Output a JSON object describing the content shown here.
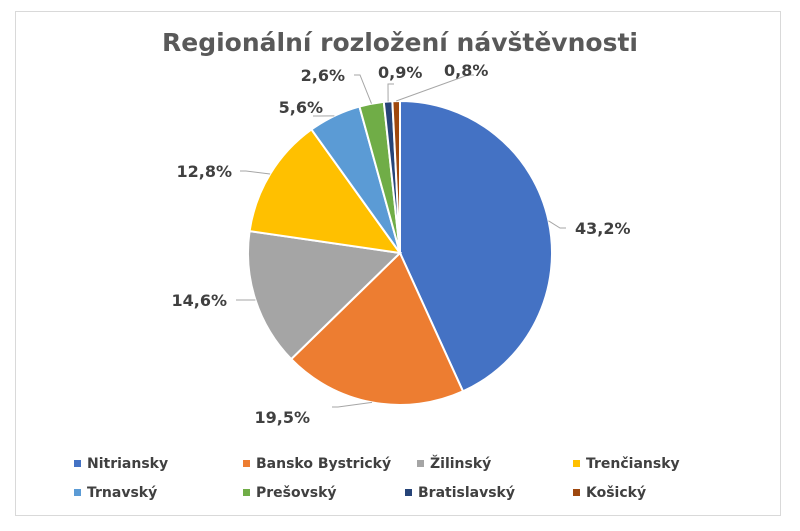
{
  "chart_data": {
    "type": "pie",
    "title": "Regionální rozložení návštěvnosti",
    "legend_position": "bottom",
    "slices": [
      {
        "name": "Nitriansky",
        "value": 43.2,
        "label": "43,2%",
        "color": "#4472C4"
      },
      {
        "name": "Bansko Bystrický",
        "value": 19.5,
        "label": "19,5%",
        "color": "#ED7D31"
      },
      {
        "name": "Žilinský",
        "value": 14.6,
        "label": "14,6%",
        "color": "#A5A5A5"
      },
      {
        "name": "Trenčiansky",
        "value": 12.8,
        "label": "12,8%",
        "color": "#FFC000"
      },
      {
        "name": "Trnavský",
        "value": 5.6,
        "label": "5,6%",
        "color": "#5B9BD5"
      },
      {
        "name": "Prešovský",
        "value": 2.6,
        "label": "2,6%",
        "color": "#70AD47"
      },
      {
        "name": "Bratislavský",
        "value": 0.9,
        "label": "0,9%",
        "color": "#264478"
      },
      {
        "name": "Košický",
        "value": 0.8,
        "label": "0,8%",
        "color": "#9E480E"
      }
    ]
  }
}
